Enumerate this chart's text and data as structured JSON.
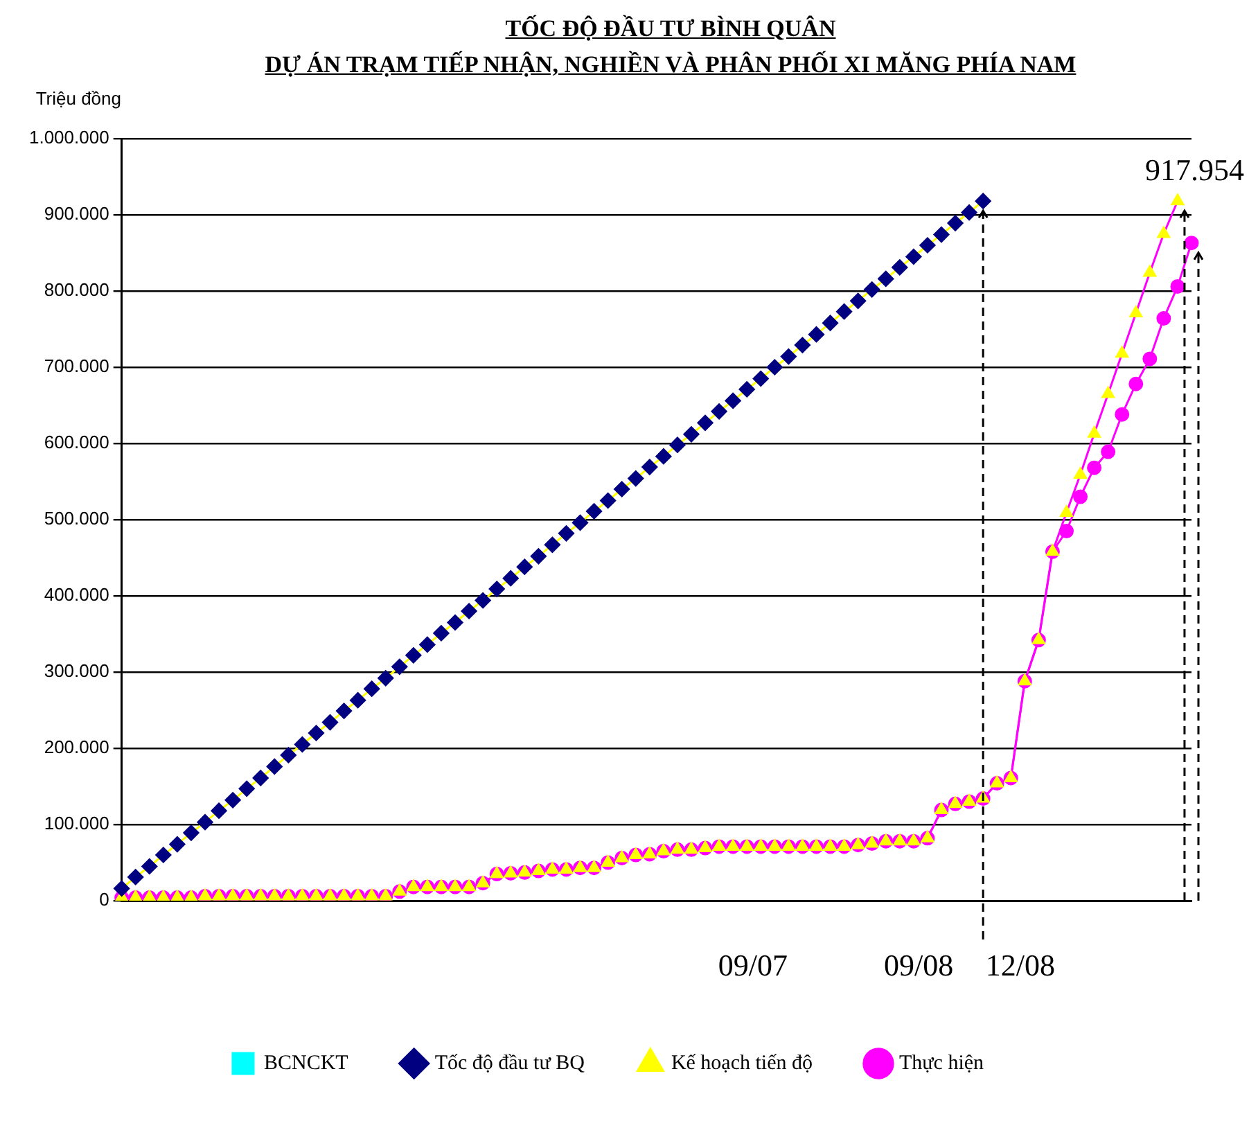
{
  "chart_data": {
    "type": "line",
    "title": "TỐC ĐỘ ĐẦU TƯ BÌNH QUÂN",
    "subtitle": "DỰ ÁN TRẠM TIẾP NHẬN, NGHIỀN VÀ PHÂN PHỐI XI MĂNG PHÍA NAM",
    "ylabel": "Triệu đồng",
    "categories": [
      null,
      null,
      null,
      null,
      null,
      null,
      null,
      null,
      null,
      null,
      null,
      null,
      null,
      null,
      null,
      null,
      null,
      null,
      null,
      null,
      null,
      null,
      null,
      null,
      null,
      null,
      null,
      null,
      null,
      null,
      null,
      null,
      null,
      null,
      null,
      null,
      null,
      null,
      null,
      null,
      null,
      null,
      null,
      null,
      null,
      null,
      null,
      null,
      null,
      null,
      null,
      null,
      null,
      null,
      null,
      null,
      null,
      null,
      null,
      null,
      null,
      null,
      null,
      null,
      null,
      null,
      null,
      null,
      null,
      null,
      null,
      null,
      null,
      null,
      null,
      null,
      null,
      null
    ],
    "series": [
      {
        "name": "BCNCKT",
        "color": "#00ffff",
        "marker": "square",
        "values": [
          null,
          null,
          null,
          null,
          null,
          null,
          null,
          null,
          null,
          null,
          null,
          null,
          null,
          null,
          null,
          null,
          null,
          null,
          null,
          null,
          null,
          null,
          null,
          null,
          null,
          null,
          null,
          null,
          null,
          null,
          null,
          null,
          null,
          null,
          null,
          null,
          null,
          null,
          null,
          null,
          null,
          null,
          null,
          null,
          null,
          null,
          null,
          null,
          null,
          null,
          null,
          null,
          null,
          null,
          null,
          null,
          null,
          null,
          null,
          null,
          null,
          null,
          null,
          null,
          null,
          null,
          null,
          null,
          null,
          null,
          null,
          null,
          null,
          null,
          null,
          null,
          null,
          null
        ]
      },
      {
        "name": "Tốc độ đầu tư BQ",
        "color": "#ffff00",
        "marker": "diamond",
        "values": [
          16000,
          31000,
          45000,
          60000,
          74000,
          89000,
          103000,
          118000,
          132000,
          147000,
          161000,
          176000,
          191000,
          205000,
          220000,
          234000,
          249000,
          263000,
          278000,
          292000,
          307000,
          322000,
          336000,
          351000,
          365000,
          380000,
          394000,
          409000,
          423000,
          438000,
          452000,
          467000,
          482000,
          496000,
          511000,
          525000,
          540000,
          554000,
          569000,
          583000,
          598000,
          612000,
          627000,
          642000,
          656000,
          671000,
          685000,
          700000,
          714000,
          729000,
          743000,
          758000,
          773000,
          787000,
          802000,
          816000,
          831000,
          845000,
          860000,
          874000,
          889000,
          903000,
          918000,
          null,
          null,
          null,
          null,
          null,
          null,
          null,
          null,
          null,
          null,
          null,
          null,
          null,
          null,
          null
        ],
        "colors": [
          "#000080",
          "#000080",
          "#000080",
          "#000080",
          "#000080",
          "#000080",
          "#000080",
          "#000080",
          "#000080",
          "#000080",
          "#000080",
          "#000080",
          "#000080",
          "#000080",
          "#000080",
          "#000080",
          "#000080",
          "#000080",
          "#000080",
          "#000080",
          "#000080",
          "#000080",
          "#000080",
          "#000080",
          "#000080",
          "#000080",
          "#000080",
          "#000080",
          "#000080",
          "#000080",
          "#000080",
          "#000080",
          "#000080",
          "#000080",
          "#000080",
          "#000080",
          "#000080",
          "#000080",
          "#000080",
          "#000080",
          "#000080",
          "#000080",
          "#000080",
          "#000080",
          "#000080",
          "#000080",
          "#000080",
          "#000080",
          "#000080",
          "#000080",
          "#000080",
          "#000080",
          "#000080",
          "#000080",
          "#000080",
          "#000080",
          "#000080",
          "#000080",
          "#000080",
          "#000080",
          "#000080",
          "#000080",
          "#000080",
          null,
          null,
          null,
          null,
          null,
          null,
          null,
          null,
          null,
          null,
          null,
          null,
          null,
          null,
          null
        ]
      },
      {
        "name": "Kế hoạch tiến độ",
        "color": "#ff00ff",
        "marker": "triangle",
        "values": [
          4000,
          4000,
          4000,
          4000,
          4000,
          4000,
          6000,
          6000,
          6000,
          6000,
          6000,
          6000,
          6000,
          6000,
          6000,
          6000,
          6000,
          6000,
          6000,
          6000,
          12000,
          18000,
          18000,
          18000,
          18000,
          18000,
          23000,
          35000,
          36000,
          37000,
          39000,
          41000,
          41000,
          43000,
          43000,
          50000,
          56000,
          60000,
          61000,
          65000,
          67000,
          67000,
          69000,
          71000,
          71000,
          71000,
          71000,
          71000,
          71000,
          71000,
          71000,
          71000,
          71000,
          73000,
          75000,
          78000,
          78000,
          78000,
          82000,
          119000,
          127000,
          130000,
          134000,
          154000,
          161000,
          288000,
          342000,
          458000,
          509000,
          559000,
          613000,
          665000,
          718000,
          771000,
          824000,
          875000,
          917954,
          null
        ],
        "colors": [
          "#ffff00",
          "#ffff00",
          "#ffff00",
          "#ffff00",
          "#ffff00",
          "#ffff00",
          "#ffff00",
          "#ffff00",
          "#ffff00",
          "#ffff00",
          "#ffff00",
          "#ffff00",
          "#ffff00",
          "#ffff00",
          "#ffff00",
          "#ffff00",
          "#ffff00",
          "#ffff00",
          "#ffff00",
          "#ffff00",
          "#ffff00",
          "#ffff00",
          "#ffff00",
          "#ffff00",
          "#ffff00",
          "#ffff00",
          "#ffff00",
          "#ffff00",
          "#ffff00",
          "#ffff00",
          "#ffff00",
          "#ffff00",
          "#ffff00",
          "#ffff00",
          "#ffff00",
          "#ffff00",
          "#ffff00",
          "#ffff00",
          "#ffff00",
          "#ffff00",
          "#ffff00",
          "#ffff00",
          "#ffff00",
          "#ffff00",
          "#ffff00",
          "#ffff00",
          "#ffff00",
          "#ffff00",
          "#ffff00",
          "#ffff00",
          "#ffff00",
          "#ffff00",
          "#ffff00",
          "#ffff00",
          "#ffff00",
          "#ffff00",
          "#ffff00",
          "#ffff00",
          "#ffff00",
          "#ffff00",
          "#ffff00",
          "#ffff00",
          "#ffff00",
          "#ffff00",
          "#ffff00",
          "#ffff00",
          "#ffff00",
          "#ffff00",
          "#ffff00",
          "#ffff00",
          "#ffff00",
          "#ffff00",
          "#ffff00",
          "#ffff00",
          "#ffff00",
          "#ffff00",
          "#ffff00",
          null
        ]
      },
      {
        "name": "Thực hiện",
        "color": "#ff00ff",
        "marker": "circle",
        "values": [
          4000,
          4000,
          4000,
          4000,
          4000,
          4000,
          6000,
          6000,
          6000,
          6000,
          6000,
          6000,
          6000,
          6000,
          6000,
          6000,
          6000,
          6000,
          6000,
          6000,
          12000,
          18000,
          18000,
          18000,
          18000,
          18000,
          23000,
          35000,
          36000,
          37000,
          39000,
          41000,
          41000,
          43000,
          43000,
          50000,
          56000,
          60000,
          61000,
          65000,
          67000,
          67000,
          69000,
          71000,
          71000,
          71000,
          71000,
          71000,
          71000,
          71000,
          71000,
          71000,
          71000,
          73000,
          75000,
          78000,
          78000,
          78000,
          82000,
          119000,
          127000,
          130000,
          134000,
          154000,
          161000,
          288000,
          342000,
          458000,
          485000,
          530000,
          568000,
          589000,
          638000,
          678000,
          711000,
          764000,
          806000,
          863000
        ]
      }
    ],
    "ylim": [
      0,
      1000000
    ],
    "yticks": [
      {
        "value": 0,
        "label": "0"
      },
      {
        "value": 100000,
        "label": "100.000"
      },
      {
        "value": 200000,
        "label": "200.000"
      },
      {
        "value": 300000,
        "label": "300.000"
      },
      {
        "value": 400000,
        "label": "400.000"
      },
      {
        "value": 500000,
        "label": "500.000"
      },
      {
        "value": 600000,
        "label": "600.000"
      },
      {
        "value": 700000,
        "label": "700.000"
      },
      {
        "value": 800000,
        "label": "800.000"
      },
      {
        "value": 900000,
        "label": "900.000"
      },
      {
        "value": 1000000,
        "label": "1.000.000"
      }
    ],
    "annotations": [
      "09/07",
      "09/08",
      "12/08",
      "917.954"
    ],
    "grid": "y",
    "legend": "bottom",
    "line_style": "solid"
  }
}
